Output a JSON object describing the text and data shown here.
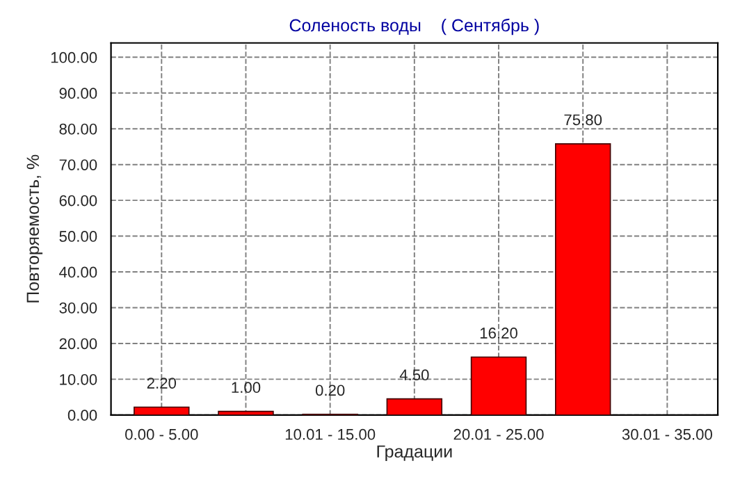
{
  "chart_data": {
    "type": "bar",
    "title": "Соленость воды    ( Сентябрь )",
    "xlabel": "Градации",
    "ylabel": "Повторяемость, %",
    "categories": [
      "0.00 - 5.00",
      null,
      "10.01 - 15.00",
      null,
      "20.01 - 25.00",
      null,
      "30.01 - 35.00"
    ],
    "values": [
      2.2,
      1.0,
      0.2,
      4.5,
      16.2,
      75.8,
      null
    ],
    "value_labels": [
      "2.20",
      "1.00",
      "0.20",
      "4.50",
      "16.20",
      "75.80",
      null
    ],
    "color": "#ff0000",
    "ylim": [
      0,
      104
    ],
    "yticks": [
      {
        "value": 0,
        "label": "0.00"
      },
      {
        "value": 10,
        "label": "10.00"
      },
      {
        "value": 20,
        "label": "20.00"
      },
      {
        "value": 30,
        "label": "30.00"
      },
      {
        "value": 40,
        "label": "40.00"
      },
      {
        "value": 50,
        "label": "50.00"
      },
      {
        "value": 60,
        "label": "60.00"
      },
      {
        "value": 70,
        "label": "70.00"
      },
      {
        "value": 80,
        "label": "80.00"
      },
      {
        "value": 90,
        "label": "90.00"
      },
      {
        "value": 100,
        "label": "100.00"
      }
    ],
    "grid": true
  }
}
